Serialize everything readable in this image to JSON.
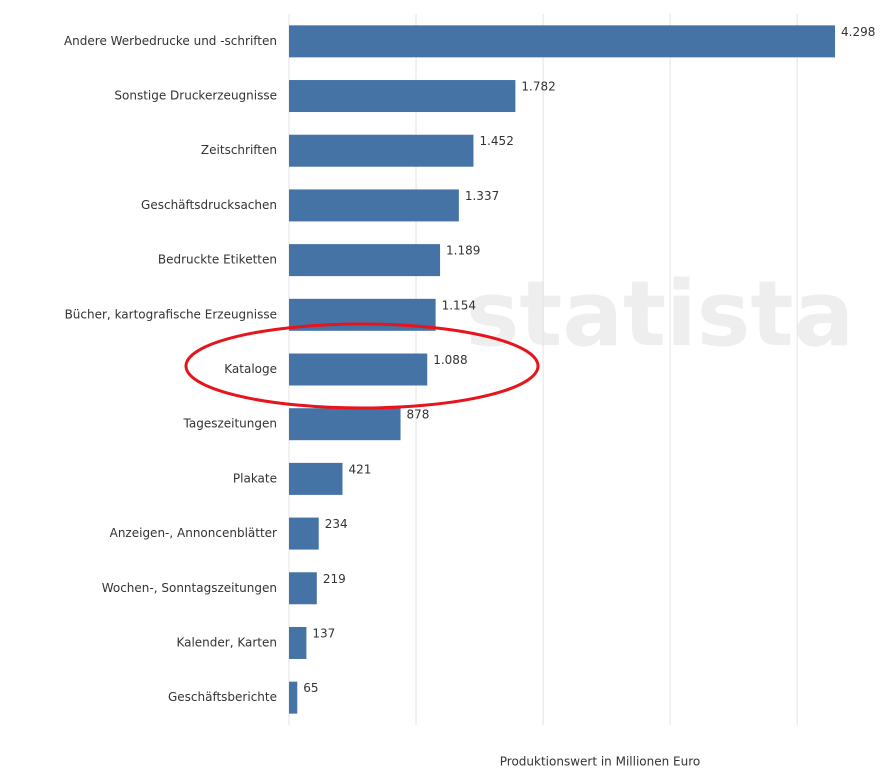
{
  "chart_data": {
    "type": "barh",
    "categories": [
      "Andere Werbedrucke und -schriften",
      "Sonstige Druckerzeugnisse",
      "Zeitschriften",
      "Geschäftsdrucksachen",
      "Bedruckte Etiketten",
      "Bücher, kartografische Erzeugnisse",
      "Kataloge",
      "Tageszeitungen",
      "Plakate",
      "Anzeigen-, Annoncenblätter",
      "Wochen-, Sonntagszeitungen",
      "Kalender, Karten",
      "Geschäftsberichte"
    ],
    "values": [
      4298,
      1782,
      1452,
      1337,
      1189,
      1154,
      1088,
      878,
      421,
      234,
      219,
      137,
      65
    ],
    "value_labels": [
      "4.298",
      "1.782",
      "1.452",
      "1.337",
      "1.189",
      "1.154",
      "1.088",
      "878",
      "421",
      "234",
      "219",
      "137",
      "65"
    ],
    "color": "#4673a6",
    "xlabel": "Produktionswert in Millionen Euro",
    "xlim": [
      0,
      4400
    ],
    "xticks": [
      0,
      1000,
      2000,
      3000,
      4000
    ],
    "grid": true,
    "watermark": "statista"
  }
}
